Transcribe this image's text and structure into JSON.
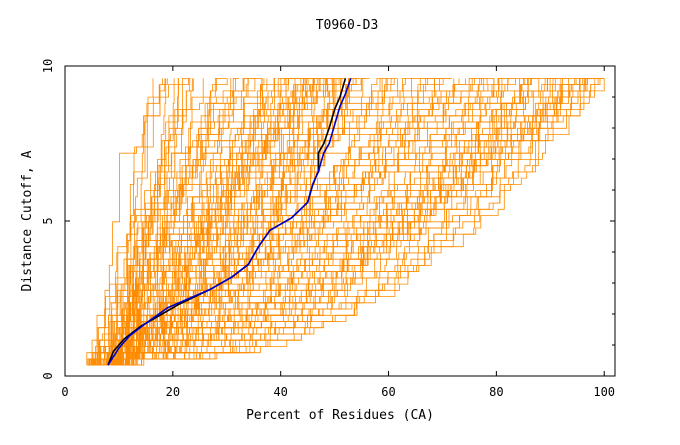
{
  "chart_data": {
    "type": "line",
    "title": "T0960-D3",
    "xlabel": "Percent of Residues (CA)",
    "ylabel": "Distance Cutoff, A",
    "xlim": [
      0,
      102
    ],
    "ylim": [
      0,
      10
    ],
    "x_ticks": [
      0,
      20,
      40,
      60,
      80,
      100
    ],
    "y_ticks": [
      0,
      5,
      10
    ],
    "grid": false,
    "colors": {
      "background_models": "#ff8c00",
      "highlight_black": "#000000",
      "highlight_blue": "#0000cc"
    },
    "background_series_count": 150,
    "series": [
      {
        "color": "#000000",
        "points": [
          [
            8,
            0.35
          ],
          [
            9,
            0.8
          ],
          [
            11,
            1.2
          ],
          [
            14,
            1.6
          ],
          [
            18,
            2.0
          ],
          [
            21,
            2.3
          ],
          [
            27,
            2.8
          ],
          [
            31,
            3.2
          ],
          [
            34,
            3.6
          ],
          [
            36,
            4.2
          ],
          [
            38,
            4.7
          ],
          [
            42,
            5.1
          ],
          [
            45,
            5.6
          ],
          [
            46,
            6.2
          ],
          [
            47,
            6.6
          ],
          [
            47,
            7.2
          ],
          [
            48,
            7.5
          ],
          [
            49,
            8.0
          ],
          [
            50,
            8.6
          ],
          [
            51,
            9.0
          ],
          [
            52,
            9.6
          ]
        ]
      },
      {
        "color": "#0000cc",
        "points": [
          [
            8,
            0.35
          ],
          [
            10,
            0.9
          ],
          [
            12,
            1.3
          ],
          [
            15,
            1.7
          ],
          [
            19,
            2.2
          ],
          [
            23,
            2.5
          ],
          [
            27,
            2.8
          ],
          [
            31,
            3.2
          ],
          [
            34,
            3.6
          ],
          [
            36,
            4.2
          ],
          [
            38,
            4.7
          ],
          [
            42,
            5.1
          ],
          [
            45,
            5.6
          ],
          [
            46,
            6.2
          ],
          [
            47,
            6.6
          ],
          [
            48,
            7.2
          ],
          [
            49,
            7.5
          ],
          [
            50,
            8.1
          ],
          [
            51,
            8.7
          ],
          [
            52,
            9.1
          ],
          [
            53,
            9.6
          ]
        ]
      }
    ]
  }
}
